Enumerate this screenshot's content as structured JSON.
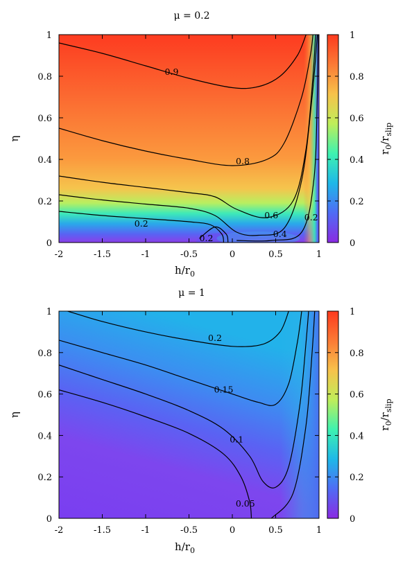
{
  "chart_data": [
    {
      "type": "heatmap",
      "title": "μ = 0.2",
      "xlabel": "h/r",
      "xlabel_sub": "0",
      "ylabel": "η",
      "xlim": [
        -2,
        1
      ],
      "ylim": [
        0,
        1
      ],
      "x_ticks": [
        "-2",
        "-1.5",
        "-1",
        "-0.5",
        "0",
        "0.5",
        "1"
      ],
      "y_ticks": [
        "0",
        "0.2",
        "0.4",
        "0.6",
        "0.8",
        "1"
      ],
      "colorbar": {
        "label": "r",
        "label_sub1": "0",
        "label_mid": "/r",
        "label_sub2": "slip",
        "range": [
          0,
          1
        ],
        "ticks": [
          "0",
          "0.2",
          "0.4",
          "0.6",
          "0.8",
          "1"
        ],
        "colormap": [
          "#8a2be2",
          "#4f6cf5",
          "#1fb8e8",
          "#3ef2b0",
          "#bfee5a",
          "#f7c24b",
          "#fb7a35",
          "#fc3a1e"
        ]
      },
      "contours": [
        {
          "level": "0.9",
          "points": [
            [
              -2,
              0.96
            ],
            [
              -1.5,
              0.91
            ],
            [
              -1,
              0.85
            ],
            [
              -0.5,
              0.79
            ],
            [
              0,
              0.745
            ],
            [
              0.3,
              0.75
            ],
            [
              0.55,
              0.8
            ],
            [
              0.75,
              0.9
            ],
            [
              0.85,
              1.0
            ]
          ]
        },
        {
          "level": "0.8",
          "points": [
            [
              -2,
              0.55
            ],
            [
              -1.5,
              0.49
            ],
            [
              -1,
              0.44
            ],
            [
              -0.5,
              0.4
            ],
            [
              0,
              0.37
            ],
            [
              0.4,
              0.4
            ],
            [
              0.6,
              0.48
            ],
            [
              0.8,
              0.7
            ],
            [
              0.9,
              0.9
            ],
            [
              0.93,
              1.0
            ]
          ]
        },
        {
          "level": "0.6",
          "points": [
            [
              -2,
              0.32
            ],
            [
              -1.5,
              0.29
            ],
            [
              -1,
              0.265
            ],
            [
              -0.5,
              0.24
            ],
            [
              -0.2,
              0.22
            ],
            [
              0.05,
              0.16
            ],
            [
              0.4,
              0.12
            ],
            [
              0.7,
              0.2
            ],
            [
              0.85,
              0.45
            ],
            [
              0.93,
              0.8
            ],
            [
              0.96,
              1.0
            ]
          ]
        },
        {
          "level": "0.4",
          "points": [
            [
              -2,
              0.23
            ],
            [
              -1.5,
              0.205
            ],
            [
              -1,
              0.185
            ],
            [
              -0.5,
              0.165
            ],
            [
              -0.2,
              0.13
            ],
            [
              0.05,
              0.05
            ],
            [
              0.3,
              0.035
            ],
            [
              0.6,
              0.07
            ],
            [
              0.8,
              0.3
            ],
            [
              0.92,
              0.7
            ],
            [
              0.98,
              1.0
            ]
          ]
        },
        {
          "level": "0.2",
          "points": [
            [
              -2,
              0.15
            ],
            [
              -1.5,
              0.13
            ],
            [
              -1,
              0.115
            ],
            [
              -0.5,
              0.1
            ],
            [
              -0.25,
              0.085
            ],
            [
              -0.12,
              0.04
            ],
            [
              -0.1,
              0.0
            ]
          ]
        },
        {
          "level": "0.2",
          "points": [
            [
              0.05,
              0.01
            ],
            [
              0.45,
              0.01
            ],
            [
              0.8,
              0.05
            ],
            [
              0.94,
              0.3
            ],
            [
              0.98,
              0.7
            ],
            [
              0.99,
              1.0
            ]
          ]
        },
        {
          "level": "0.2",
          "points": [
            [
              -0.38,
              0.02
            ],
            [
              -0.2,
              0.075
            ],
            [
              -0.07,
              0.04
            ],
            [
              -0.05,
              0.0
            ]
          ]
        }
      ],
      "contour_labels": [
        {
          "text": "0.9",
          "x": -0.7,
          "y": 0.82
        },
        {
          "text": "0.8",
          "x": 0.12,
          "y": 0.39
        },
        {
          "text": "0.6",
          "x": 0.45,
          "y": 0.13
        },
        {
          "text": "0.4",
          "x": 0.55,
          "y": 0.04
        },
        {
          "text": "0.2",
          "x": -1.05,
          "y": 0.09
        },
        {
          "text": "0.2",
          "x": -0.3,
          "y": 0.02
        },
        {
          "text": "0.2",
          "x": 0.91,
          "y": 0.12
        }
      ]
    },
    {
      "type": "heatmap",
      "title": "μ = 1",
      "xlabel": "h/r",
      "xlabel_sub": "0",
      "ylabel": "η",
      "xlim": [
        -2,
        1
      ],
      "ylim": [
        0,
        1
      ],
      "x_ticks": [
        "-2",
        "-1.5",
        "-1",
        "-0.5",
        "0",
        "0.5",
        "1"
      ],
      "y_ticks": [
        "0",
        "0.2",
        "0.4",
        "0.6",
        "0.8",
        "1"
      ],
      "colorbar": {
        "label": "r",
        "label_sub1": "0",
        "label_mid": "/r",
        "label_sub2": "slip",
        "range": [
          0,
          1
        ],
        "ticks": [
          "0",
          "0.2",
          "0.4",
          "0.6",
          "0.8",
          "1"
        ],
        "colormap": [
          "#8a2be2",
          "#4f6cf5",
          "#1fb8e8",
          "#3ef2b0",
          "#bfee5a",
          "#f7c24b",
          "#fb7a35",
          "#fc3a1e"
        ]
      },
      "contours": [
        {
          "level": "0.2",
          "points": [
            [
              -1.9,
              1.0
            ],
            [
              -1.5,
              0.95
            ],
            [
              -1,
              0.9
            ],
            [
              -0.5,
              0.86
            ],
            [
              0,
              0.83
            ],
            [
              0.35,
              0.84
            ],
            [
              0.55,
              0.9
            ],
            [
              0.65,
              1.0
            ]
          ]
        },
        {
          "level": "0.15",
          "points": [
            [
              -2,
              0.86
            ],
            [
              -1.5,
              0.8
            ],
            [
              -1,
              0.74
            ],
            [
              -0.5,
              0.67
            ],
            [
              0,
              0.6
            ],
            [
              0.3,
              0.56
            ],
            [
              0.5,
              0.55
            ],
            [
              0.65,
              0.65
            ],
            [
              0.75,
              0.85
            ],
            [
              0.8,
              1.0
            ]
          ]
        },
        {
          "level": "0.1",
          "points": [
            [
              -2,
              0.74
            ],
            [
              -1.5,
              0.67
            ],
            [
              -1,
              0.6
            ],
            [
              -0.5,
              0.52
            ],
            [
              -0.1,
              0.43
            ],
            [
              0.2,
              0.3
            ],
            [
              0.35,
              0.18
            ],
            [
              0.5,
              0.15
            ],
            [
              0.65,
              0.25
            ],
            [
              0.78,
              0.55
            ],
            [
              0.85,
              0.85
            ],
            [
              0.88,
              1.0
            ]
          ]
        },
        {
          "level": "0.05",
          "points": [
            [
              -2,
              0.62
            ],
            [
              -1.5,
              0.56
            ],
            [
              -1,
              0.49
            ],
            [
              -0.5,
              0.41
            ],
            [
              -0.1,
              0.31
            ],
            [
              0.1,
              0.2
            ],
            [
              0.2,
              0.08
            ],
            [
              0.22,
              0.0
            ]
          ]
        },
        {
          "level": "0.05",
          "points": [
            [
              0.45,
              0.0
            ],
            [
              0.7,
              0.12
            ],
            [
              0.85,
              0.45
            ],
            [
              0.92,
              0.8
            ],
            [
              0.95,
              1.0
            ]
          ]
        }
      ],
      "contour_labels": [
        {
          "text": "0.2",
          "x": -0.2,
          "y": 0.87
        },
        {
          "text": "0.15",
          "x": -0.1,
          "y": 0.62
        },
        {
          "text": "0.1",
          "x": 0.05,
          "y": 0.38
        },
        {
          "text": "0.05",
          "x": 0.15,
          "y": 0.07
        }
      ]
    }
  ]
}
